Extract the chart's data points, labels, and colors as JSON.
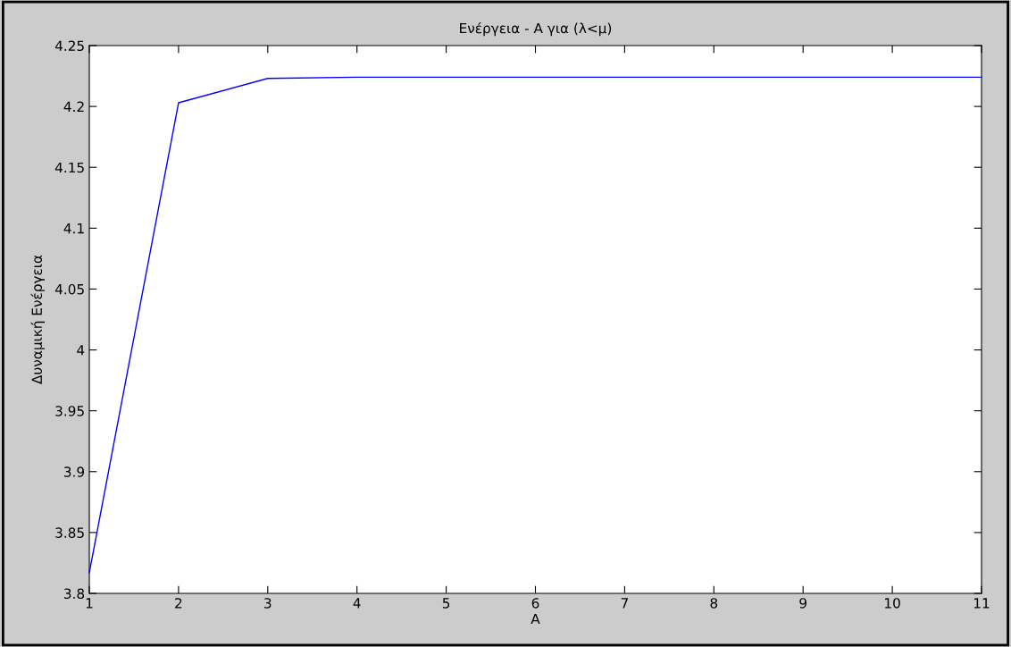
{
  "chart_data": {
    "type": "line",
    "title": "Ενέργεια - Α για (λ<μ)",
    "xlabel": "Α",
    "ylabel": "Δυναμική Ενέργεια",
    "x": [
      1,
      2,
      3,
      4,
      5,
      6,
      7,
      8,
      9,
      10,
      11
    ],
    "series": [
      {
        "color": "#0000ff",
        "values": [
          3.817,
          4.203,
          4.223,
          4.224,
          4.224,
          4.224,
          4.224,
          4.224,
          4.224,
          4.224,
          4.224
        ]
      }
    ],
    "xlim": [
      1,
      11
    ],
    "xticks": [
      1,
      2,
      3,
      4,
      5,
      6,
      7,
      8,
      9,
      10,
      11
    ],
    "ylim": [
      3.8,
      4.25
    ],
    "yticks": [
      3.8,
      3.85,
      3.9,
      3.95,
      4,
      4.05,
      4.1,
      4.15,
      4.2,
      4.25
    ],
    "grid": false,
    "marker": "none",
    "line_style": "solid"
  }
}
